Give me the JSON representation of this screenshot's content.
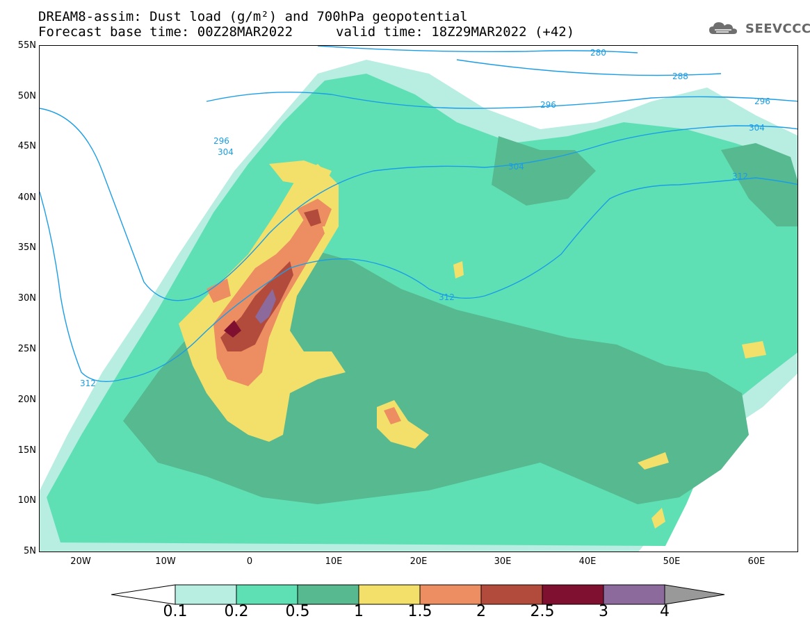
{
  "header": {
    "title": "DREAM8-assim: Dust load (g/m²) and 700hPa geopotential",
    "base_time": "Forecast base time: 00Z28MAR2022",
    "valid_time": "valid time: 18Z29MAR2022 (+42)"
  },
  "logo": {
    "text": "SEEVCCC",
    "icon": "cloud-icon"
  },
  "axes": {
    "lat_labels": [
      "55N",
      "50N",
      "45N",
      "40N",
      "35N",
      "30N",
      "25N",
      "20N",
      "15N",
      "10N",
      "5N"
    ],
    "lon_labels": [
      "20W",
      "10W",
      "0",
      "10E",
      "20E",
      "30E",
      "40E",
      "50E",
      "60E"
    ]
  },
  "contours": {
    "labels": [
      "280",
      "288",
      "296",
      "296",
      "296",
      "304",
      "304",
      "304",
      "312",
      "312",
      "312"
    ]
  },
  "colorbar": {
    "labels": [
      "0.1",
      "0.2",
      "0.5",
      "1",
      "1.5",
      "2",
      "2.5",
      "3",
      "4"
    ],
    "colors": [
      "#ffffff",
      "#b8ede2",
      "#5fe0b4",
      "#56b98f",
      "#f2e06a",
      "#ec8e62",
      "#b34b3c",
      "#80102f",
      "#8c6a9c",
      "#999999"
    ]
  }
}
